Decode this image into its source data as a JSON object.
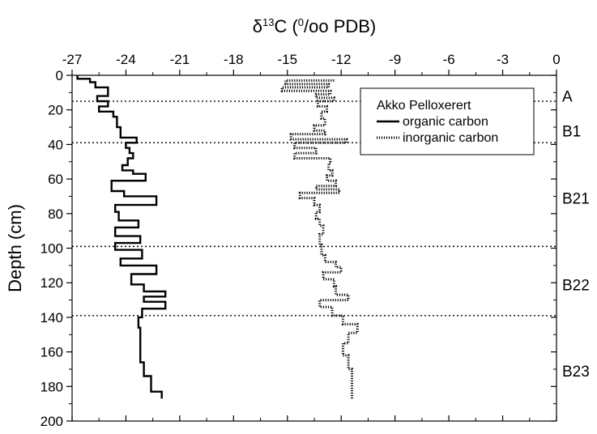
{
  "chart_data": {
    "type": "line",
    "title": "",
    "xlabel": {
      "delta": "δ",
      "sup1": "13",
      "mid": "C (",
      "sup2": "0",
      "rest": "/oo PDB)"
    },
    "ylabel": "Depth (cm)",
    "xlim": [
      -27,
      0
    ],
    "ylim": [
      200,
      0
    ],
    "x_ticks": [
      -27,
      -24,
      -21,
      -18,
      -15,
      -12,
      -9,
      -6,
      -3,
      0
    ],
    "y_ticks": [
      0,
      20,
      40,
      60,
      80,
      100,
      120,
      140,
      160,
      180,
      200
    ],
    "x_axis_position": "top",
    "grid": false,
    "legend": {
      "title": "Akko Pelloxerert",
      "position": "top-right",
      "entries": [
        "organic carbon",
        "inorganic carbon"
      ]
    },
    "horizon_boundaries": [
      15,
      39,
      99,
      139
    ],
    "horizons": [
      {
        "label": "A",
        "depth": 12
      },
      {
        "label": "B1",
        "depth": 32
      },
      {
        "label": "B21",
        "depth": 71
      },
      {
        "label": "B22",
        "depth": 121
      },
      {
        "label": "B23",
        "depth": 171
      }
    ],
    "series": [
      {
        "name": "organic carbon",
        "style": "solid",
        "points": [
          [
            -26.7,
            0
          ],
          [
            -26.7,
            2
          ],
          [
            -26.0,
            2
          ],
          [
            -26.0,
            4
          ],
          [
            -25.7,
            4
          ],
          [
            -25.7,
            7
          ],
          [
            -25.0,
            7
          ],
          [
            -25.0,
            12
          ],
          [
            -25.6,
            12
          ],
          [
            -25.6,
            15
          ],
          [
            -25.0,
            15
          ],
          [
            -25.0,
            18
          ],
          [
            -25.5,
            18
          ],
          [
            -25.5,
            21
          ],
          [
            -24.7,
            21
          ],
          [
            -24.7,
            24
          ],
          [
            -24.5,
            24
          ],
          [
            -24.5,
            30
          ],
          [
            -24.3,
            30
          ],
          [
            -24.3,
            36
          ],
          [
            -23.4,
            36
          ],
          [
            -23.4,
            39
          ],
          [
            -24.0,
            39
          ],
          [
            -24.0,
            42
          ],
          [
            -23.8,
            42
          ],
          [
            -23.8,
            45
          ],
          [
            -23.6,
            45
          ],
          [
            -23.6,
            48
          ],
          [
            -23.9,
            48
          ],
          [
            -23.9,
            52
          ],
          [
            -24.2,
            52
          ],
          [
            -24.2,
            55
          ],
          [
            -23.6,
            55
          ],
          [
            -23.6,
            57
          ],
          [
            -22.9,
            57
          ],
          [
            -22.9,
            61
          ],
          [
            -24.8,
            61
          ],
          [
            -24.8,
            67
          ],
          [
            -24.1,
            67
          ],
          [
            -24.1,
            70
          ],
          [
            -22.3,
            70
          ],
          [
            -22.3,
            75
          ],
          [
            -24.6,
            75
          ],
          [
            -24.6,
            79
          ],
          [
            -24.4,
            79
          ],
          [
            -24.4,
            84
          ],
          [
            -23.3,
            84
          ],
          [
            -23.3,
            88
          ],
          [
            -24.6,
            88
          ],
          [
            -24.6,
            93
          ],
          [
            -23.2,
            93
          ],
          [
            -23.2,
            97
          ],
          [
            -24.6,
            97
          ],
          [
            -24.6,
            101
          ],
          [
            -23.1,
            101
          ],
          [
            -23.1,
            106
          ],
          [
            -24.3,
            106
          ],
          [
            -24.3,
            110
          ],
          [
            -22.3,
            110
          ],
          [
            -22.3,
            115
          ],
          [
            -23.7,
            115
          ],
          [
            -23.7,
            121
          ],
          [
            -23.0,
            121
          ],
          [
            -23.0,
            125
          ],
          [
            -21.8,
            125
          ],
          [
            -21.8,
            128
          ],
          [
            -23.0,
            128
          ],
          [
            -23.0,
            131
          ],
          [
            -21.8,
            131
          ],
          [
            -21.8,
            135
          ],
          [
            -23.1,
            135
          ],
          [
            -23.1,
            140
          ],
          [
            -23.3,
            140
          ],
          [
            -23.3,
            146
          ],
          [
            -23.2,
            146
          ],
          [
            -23.2,
            166
          ],
          [
            -23.0,
            166
          ],
          [
            -23.0,
            174
          ],
          [
            -22.6,
            174
          ],
          [
            -22.6,
            183
          ],
          [
            -22.0,
            183
          ],
          [
            -22.0,
            187
          ]
        ]
      },
      {
        "name": "inorganic carbon",
        "style": "dotted",
        "points": [
          [
            -12.4,
            3
          ],
          [
            -15.1,
            3
          ],
          [
            -15.1,
            5
          ],
          [
            -12.7,
            5
          ],
          [
            -12.7,
            7
          ],
          [
            -15.3,
            7
          ],
          [
            -15.3,
            9
          ],
          [
            -12.6,
            9
          ],
          [
            -12.6,
            11
          ],
          [
            -13.4,
            11
          ],
          [
            -13.4,
            13
          ],
          [
            -12.4,
            13
          ],
          [
            -12.4,
            15
          ],
          [
            -13.3,
            15
          ],
          [
            -13.3,
            18
          ],
          [
            -12.8,
            18
          ],
          [
            -12.8,
            21
          ],
          [
            -13.1,
            21
          ],
          [
            -13.1,
            25
          ],
          [
            -12.9,
            25
          ],
          [
            -12.9,
            29
          ],
          [
            -13.5,
            29
          ],
          [
            -13.5,
            32
          ],
          [
            -12.9,
            32
          ],
          [
            -12.9,
            34
          ],
          [
            -14.8,
            34
          ],
          [
            -14.8,
            37
          ],
          [
            -11.7,
            37
          ],
          [
            -11.7,
            39
          ],
          [
            -14.6,
            39
          ],
          [
            -14.6,
            42
          ],
          [
            -13.4,
            42
          ],
          [
            -13.4,
            45
          ],
          [
            -14.6,
            45
          ],
          [
            -14.6,
            48
          ],
          [
            -12.6,
            48
          ],
          [
            -12.6,
            51
          ],
          [
            -12.7,
            51
          ],
          [
            -12.7,
            55
          ],
          [
            -12.5,
            55
          ],
          [
            -12.5,
            58
          ],
          [
            -12.8,
            58
          ],
          [
            -12.8,
            61
          ],
          [
            -12.3,
            61
          ],
          [
            -12.3,
            64
          ],
          [
            -13.4,
            64
          ],
          [
            -13.4,
            66
          ],
          [
            -12.1,
            66
          ],
          [
            -12.1,
            68
          ],
          [
            -14.3,
            68
          ],
          [
            -14.3,
            71
          ],
          [
            -13.5,
            71
          ],
          [
            -13.5,
            75
          ],
          [
            -13.2,
            75
          ],
          [
            -13.2,
            79
          ],
          [
            -13.4,
            79
          ],
          [
            -13.4,
            83
          ],
          [
            -13.2,
            83
          ],
          [
            -13.2,
            87
          ],
          [
            -13.0,
            87
          ],
          [
            -13.0,
            92
          ],
          [
            -13.2,
            92
          ],
          [
            -13.2,
            98
          ],
          [
            -13.1,
            98
          ],
          [
            -13.1,
            104
          ],
          [
            -12.9,
            104
          ],
          [
            -12.9,
            108
          ],
          [
            -12.3,
            108
          ],
          [
            -12.3,
            111
          ],
          [
            -12.0,
            111
          ],
          [
            -12.0,
            114
          ],
          [
            -13.0,
            114
          ],
          [
            -13.0,
            118
          ],
          [
            -12.4,
            118
          ],
          [
            -12.4,
            122
          ],
          [
            -12.3,
            122
          ],
          [
            -12.3,
            127
          ],
          [
            -11.6,
            127
          ],
          [
            -11.6,
            130
          ],
          [
            -13.2,
            130
          ],
          [
            -13.2,
            134
          ],
          [
            -12.5,
            134
          ],
          [
            -12.5,
            139
          ],
          [
            -11.9,
            139
          ],
          [
            -11.9,
            144
          ],
          [
            -11.1,
            144
          ],
          [
            -11.1,
            149
          ],
          [
            -11.6,
            149
          ],
          [
            -11.6,
            155
          ],
          [
            -11.9,
            155
          ],
          [
            -11.9,
            162
          ],
          [
            -11.6,
            162
          ],
          [
            -11.6,
            170
          ],
          [
            -11.4,
            170
          ],
          [
            -11.4,
            180
          ],
          [
            -11.4,
            187
          ]
        ]
      }
    ]
  }
}
